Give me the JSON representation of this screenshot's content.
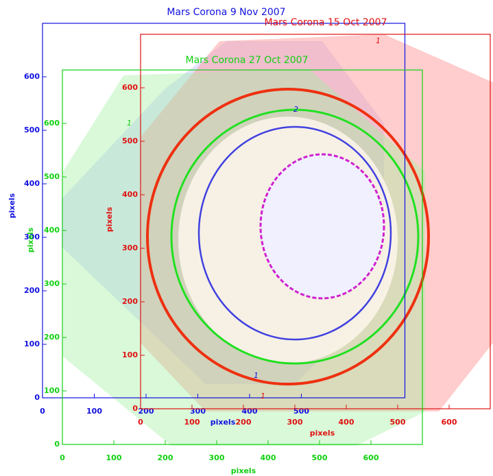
{
  "chart_data": [
    {
      "type": "frame",
      "title": "Mars Corona  9 Nov 2007",
      "xlabel": "pixels",
      "ylabel": "pixels",
      "color": "#1010e0",
      "xlim": [
        0,
        700
      ],
      "ylim": [
        0,
        700
      ],
      "xticks": [
        0,
        100,
        200,
        300,
        400,
        500
      ],
      "yticks": [
        0,
        100,
        200,
        300,
        400,
        500,
        600
      ],
      "contour_labels": [
        "2",
        "1"
      ]
    },
    {
      "type": "frame",
      "title": "Mars Corona  15 Oct 2007",
      "xlabel": "pixels",
      "ylabel": "pixels",
      "color": "#e01010",
      "xlim": [
        0,
        680
      ],
      "ylim": [
        0,
        700
      ],
      "xticks": [
        0,
        100,
        200,
        300,
        400,
        500,
        600
      ],
      "yticks": [
        0,
        100,
        200,
        300,
        400,
        500,
        600
      ],
      "contour_labels": [
        "1",
        "1"
      ]
    },
    {
      "type": "frame",
      "title": "Mars Corona  27 Oct 2007",
      "xlabel": "pixels",
      "ylabel": "pixels",
      "color": "#10d010",
      "xlim": [
        0,
        700
      ],
      "ylim": [
        0,
        700
      ],
      "xticks": [
        0,
        100,
        200,
        300,
        400,
        500,
        600
      ],
      "yticks": [
        0,
        100,
        200,
        300,
        400,
        500,
        600
      ],
      "contour_labels": [
        "1"
      ]
    }
  ]
}
